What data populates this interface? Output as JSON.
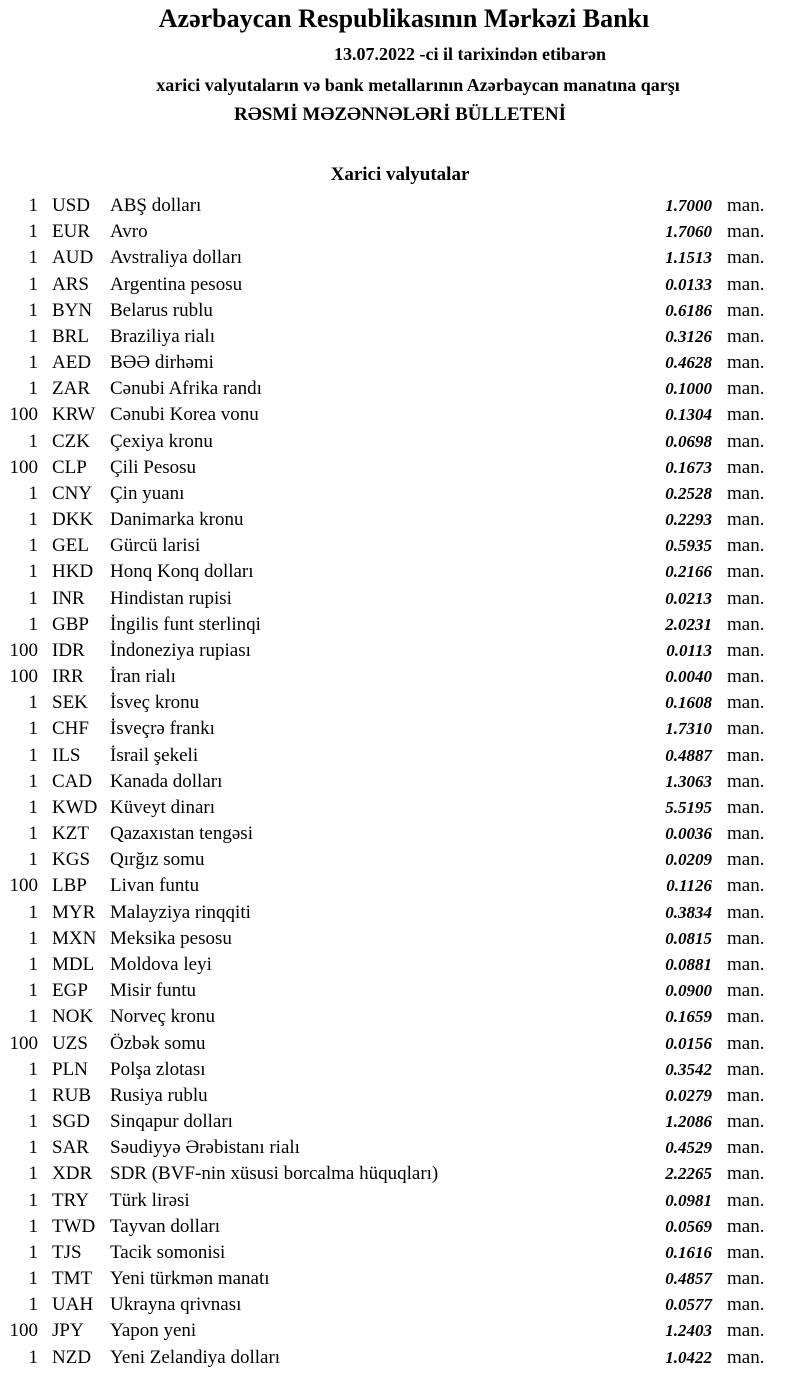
{
  "header": {
    "title": "Azərbaycan Respublikasının Mərkəzi Bankı",
    "date_line": "13.07.2022 -ci il tarixindən etibarən",
    "subtitle": "xarici valyutaların və bank metallarının Azərbaycan manatına qarşı",
    "bulletin": "RƏSMİ MƏZƏNNƏLƏRİ BÜLLETENİ"
  },
  "section_title": "Xarici valyutalar",
  "unit": "man.",
  "rates": [
    {
      "qty": "1",
      "code": "USD",
      "name": "ABŞ dolları",
      "value": "1.7000"
    },
    {
      "qty": "1",
      "code": "EUR",
      "name": "Avro",
      "value": "1.7060"
    },
    {
      "qty": "1",
      "code": "AUD",
      "name": "Avstraliya dolları",
      "value": "1.1513"
    },
    {
      "qty": "1",
      "code": "ARS",
      "name": "Argentina pesosu",
      "value": "0.0133"
    },
    {
      "qty": "1",
      "code": "BYN",
      "name": "Belarus rublu",
      "value": "0.6186"
    },
    {
      "qty": "1",
      "code": "BRL",
      "name": "Braziliya rialı",
      "value": "0.3126"
    },
    {
      "qty": "1",
      "code": "AED",
      "name": "BƏƏ dirhəmi",
      "value": "0.4628"
    },
    {
      "qty": "1",
      "code": "ZAR",
      "name": "Cənubi Afrika randı",
      "value": "0.1000"
    },
    {
      "qty": "100",
      "code": "KRW",
      "name": "Cənubi Korea vonu",
      "value": "0.1304"
    },
    {
      "qty": "1",
      "code": "CZK",
      "name": "Çexiya kronu",
      "value": "0.0698"
    },
    {
      "qty": "100",
      "code": "CLP",
      "name": "Çili Pesosu",
      "value": "0.1673"
    },
    {
      "qty": "1",
      "code": "CNY",
      "name": "Çin yuanı",
      "value": "0.2528"
    },
    {
      "qty": "1",
      "code": "DKK",
      "name": "Danimarka kronu",
      "value": "0.2293"
    },
    {
      "qty": "1",
      "code": "GEL",
      "name": "Gürcü larisi",
      "value": "0.5935"
    },
    {
      "qty": "1",
      "code": "HKD",
      "name": "Honq Konq dolları",
      "value": "0.2166"
    },
    {
      "qty": "1",
      "code": "INR",
      "name": "Hindistan rupisi",
      "value": "0.0213"
    },
    {
      "qty": "1",
      "code": "GBP",
      "name": "İngilis funt sterlinqi",
      "value": "2.0231"
    },
    {
      "qty": "100",
      "code": "IDR",
      "name": "İndoneziya rupiası",
      "value": "0.0113"
    },
    {
      "qty": "100",
      "code": "IRR",
      "name": "İran rialı",
      "value": "0.0040"
    },
    {
      "qty": "1",
      "code": "SEK",
      "name": "İsveç kronu",
      "value": "0.1608"
    },
    {
      "qty": "1",
      "code": "CHF",
      "name": "İsveçrə frankı",
      "value": "1.7310"
    },
    {
      "qty": "1",
      "code": "ILS",
      "name": "İsrail şekeli",
      "value": "0.4887"
    },
    {
      "qty": "1",
      "code": "CAD",
      "name": "Kanada dolları",
      "value": "1.3063"
    },
    {
      "qty": "1",
      "code": "KWD",
      "name": "Küveyt dinarı",
      "value": "5.5195"
    },
    {
      "qty": "1",
      "code": "KZT",
      "name": "Qazaxıstan tengəsi",
      "value": "0.0036"
    },
    {
      "qty": "1",
      "code": "KGS",
      "name": "Qırğız somu",
      "value": "0.0209"
    },
    {
      "qty": "100",
      "code": "LBP",
      "name": "Livan funtu",
      "value": "0.1126"
    },
    {
      "qty": "1",
      "code": "MYR",
      "name": "Malayziya rinqqiti",
      "value": "0.3834"
    },
    {
      "qty": "1",
      "code": "MXN",
      "name": "Meksika pesosu",
      "value": "0.0815"
    },
    {
      "qty": "1",
      "code": "MDL",
      "name": "Moldova leyi",
      "value": "0.0881"
    },
    {
      "qty": "1",
      "code": "EGP",
      "name": "Misir funtu",
      "value": "0.0900"
    },
    {
      "qty": "1",
      "code": "NOK",
      "name": "Norveç kronu",
      "value": "0.1659"
    },
    {
      "qty": "100",
      "code": "UZS",
      "name": "Özbək somu",
      "value": "0.0156"
    },
    {
      "qty": "1",
      "code": "PLN",
      "name": "Polşa zlotası",
      "value": "0.3542"
    },
    {
      "qty": "1",
      "code": "RUB",
      "name": "Rusiya rublu",
      "value": "0.0279"
    },
    {
      "qty": "1",
      "code": "SGD",
      "name": "Sinqapur dolları",
      "value": "1.2086"
    },
    {
      "qty": "1",
      "code": "SAR",
      "name": "Səudiyyə Ərəbistanı rialı",
      "value": "0.4529"
    },
    {
      "qty": "1",
      "code": "XDR",
      "name": "SDR (BVF-nin xüsusi borcalma hüquqları)",
      "value": "2.2265"
    },
    {
      "qty": "1",
      "code": "TRY",
      "name": "Türk lirəsi",
      "value": "0.0981"
    },
    {
      "qty": "1",
      "code": "TWD",
      "name": "Tayvan dolları",
      "value": "0.0569"
    },
    {
      "qty": "1",
      "code": "TJS",
      "name": "Tacik somonisi",
      "value": "0.1616"
    },
    {
      "qty": "1",
      "code": "TMT",
      "name": "Yeni türkmən manatı",
      "value": "0.4857"
    },
    {
      "qty": "1",
      "code": "UAH",
      "name": "Ukrayna qrivnası",
      "value": "0.0577"
    },
    {
      "qty": "100",
      "code": "JPY",
      "name": "Yapon yeni",
      "value": "1.2403"
    },
    {
      "qty": "1",
      "code": "NZD",
      "name": "Yeni Zelandiya dolları",
      "value": "1.0422"
    }
  ]
}
